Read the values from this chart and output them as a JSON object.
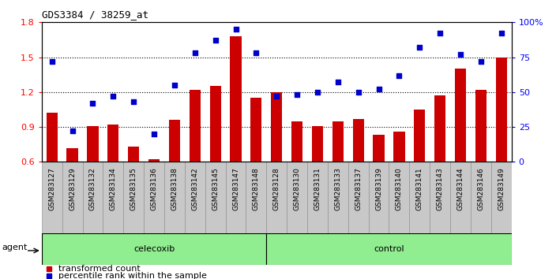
{
  "title": "GDS3384 / 38259_at",
  "categories": [
    "GSM283127",
    "GSM283129",
    "GSM283132",
    "GSM283134",
    "GSM283135",
    "GSM283136",
    "GSM283138",
    "GSM283142",
    "GSM283145",
    "GSM283147",
    "GSM283148",
    "GSM283128",
    "GSM283130",
    "GSM283131",
    "GSM283133",
    "GSM283137",
    "GSM283139",
    "GSM283140",
    "GSM283141",
    "GSM283143",
    "GSM283144",
    "GSM283146",
    "GSM283149"
  ],
  "bar_values": [
    1.02,
    0.72,
    0.91,
    0.92,
    0.73,
    0.62,
    0.96,
    1.22,
    1.25,
    1.68,
    1.15,
    1.2,
    0.95,
    0.91,
    0.95,
    0.97,
    0.83,
    0.86,
    1.05,
    1.17,
    1.4,
    1.22,
    1.5
  ],
  "scatter_pct": [
    72,
    22,
    42,
    47,
    43,
    20,
    55,
    78,
    87,
    95,
    78,
    47,
    48,
    50,
    57,
    50,
    52,
    62,
    82,
    92,
    77,
    72,
    92
  ],
  "group_labels": [
    "celecoxib",
    "control"
  ],
  "group_sizes": [
    11,
    12
  ],
  "bar_color": "#CC0000",
  "scatter_color": "#0000CC",
  "ylim_left": [
    0.6,
    1.8
  ],
  "ylim_right": [
    0,
    100
  ],
  "yticks_left": [
    0.6,
    0.9,
    1.2,
    1.5,
    1.8
  ],
  "yticks_right": [
    0,
    25,
    50,
    75,
    100
  ],
  "ytick_labels_right": [
    "0",
    "25",
    "50",
    "75",
    "100%"
  ],
  "hlines": [
    0.9,
    1.2,
    1.5
  ],
  "group_color": "#90EE90",
  "xtick_bg": "#C8C8C8",
  "agent_label": "agent",
  "legend_bar_label": "transformed count",
  "legend_scatter_label": "percentile rank within the sample"
}
